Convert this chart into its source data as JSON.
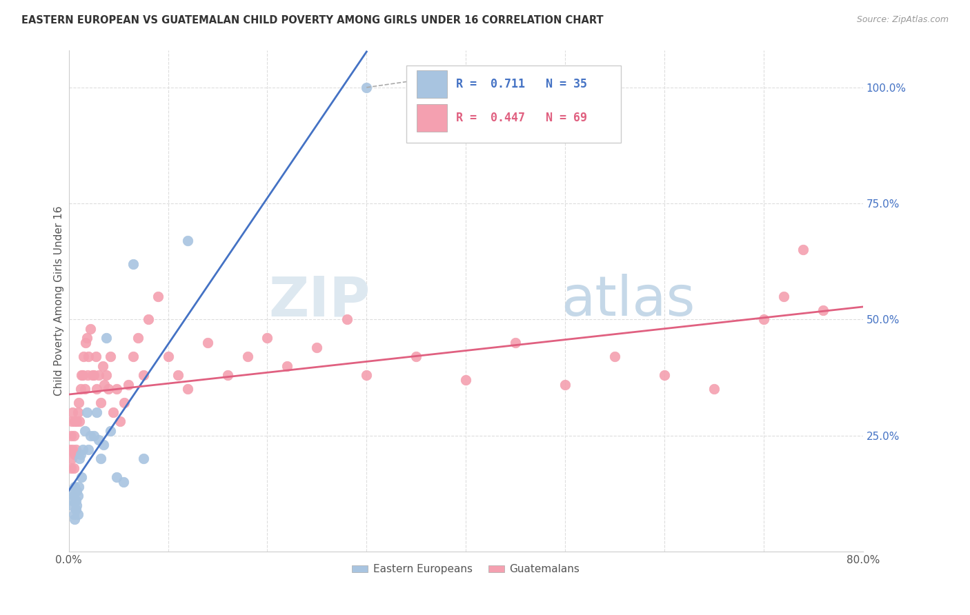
{
  "title": "EASTERN EUROPEAN VS GUATEMALAN CHILD POVERTY AMONG GIRLS UNDER 16 CORRELATION CHART",
  "source": "Source: ZipAtlas.com",
  "ylabel": "Child Poverty Among Girls Under 16",
  "ytick_labels": [
    "100.0%",
    "75.0%",
    "50.0%",
    "25.0%"
  ],
  "ytick_values": [
    1.0,
    0.75,
    0.5,
    0.25
  ],
  "xlim": [
    0.0,
    0.8
  ],
  "ylim": [
    0.0,
    1.08
  ],
  "blue_color": "#a8c4e0",
  "pink_color": "#f4a0b0",
  "blue_line_color": "#4472c4",
  "pink_line_color": "#e06080",
  "grid_color": "#dddddd",
  "ee_x": [
    0.002,
    0.003,
    0.004,
    0.005,
    0.005,
    0.006,
    0.006,
    0.007,
    0.007,
    0.008,
    0.008,
    0.009,
    0.009,
    0.01,
    0.011,
    0.012,
    0.013,
    0.014,
    0.016,
    0.018,
    0.02,
    0.022,
    0.025,
    0.028,
    0.03,
    0.032,
    0.035,
    0.038,
    0.042,
    0.048,
    0.055,
    0.065,
    0.075,
    0.12,
    0.3
  ],
  "ee_y": [
    0.13,
    0.1,
    0.11,
    0.08,
    0.12,
    0.14,
    0.07,
    0.09,
    0.11,
    0.1,
    0.13,
    0.08,
    0.12,
    0.14,
    0.2,
    0.21,
    0.16,
    0.22,
    0.26,
    0.3,
    0.22,
    0.25,
    0.25,
    0.3,
    0.24,
    0.2,
    0.23,
    0.46,
    0.26,
    0.16,
    0.15,
    0.62,
    0.2,
    0.67,
    1.0
  ],
  "gt_x": [
    0.001,
    0.002,
    0.002,
    0.003,
    0.003,
    0.004,
    0.004,
    0.005,
    0.005,
    0.006,
    0.006,
    0.007,
    0.008,
    0.009,
    0.01,
    0.011,
    0.012,
    0.013,
    0.014,
    0.015,
    0.016,
    0.017,
    0.018,
    0.019,
    0.02,
    0.022,
    0.024,
    0.025,
    0.027,
    0.028,
    0.03,
    0.032,
    0.034,
    0.036,
    0.038,
    0.04,
    0.042,
    0.045,
    0.048,
    0.052,
    0.056,
    0.06,
    0.065,
    0.07,
    0.075,
    0.08,
    0.09,
    0.1,
    0.11,
    0.12,
    0.14,
    0.16,
    0.18,
    0.2,
    0.22,
    0.25,
    0.28,
    0.3,
    0.35,
    0.4,
    0.45,
    0.5,
    0.55,
    0.6,
    0.65,
    0.7,
    0.72,
    0.74,
    0.76
  ],
  "gt_y": [
    0.22,
    0.18,
    0.25,
    0.2,
    0.28,
    0.22,
    0.3,
    0.18,
    0.25,
    0.21,
    0.28,
    0.22,
    0.28,
    0.3,
    0.32,
    0.28,
    0.35,
    0.38,
    0.38,
    0.42,
    0.35,
    0.45,
    0.46,
    0.38,
    0.42,
    0.48,
    0.38,
    0.38,
    0.42,
    0.35,
    0.38,
    0.32,
    0.4,
    0.36,
    0.38,
    0.35,
    0.42,
    0.3,
    0.35,
    0.28,
    0.32,
    0.36,
    0.42,
    0.46,
    0.38,
    0.5,
    0.55,
    0.42,
    0.38,
    0.35,
    0.45,
    0.38,
    0.42,
    0.46,
    0.4,
    0.44,
    0.5,
    0.38,
    0.42,
    0.37,
    0.45,
    0.36,
    0.42,
    0.38,
    0.35,
    0.5,
    0.55,
    0.65,
    0.52
  ],
  "vline_positions": [
    0.1,
    0.2,
    0.3,
    0.4,
    0.5,
    0.6,
    0.7
  ]
}
